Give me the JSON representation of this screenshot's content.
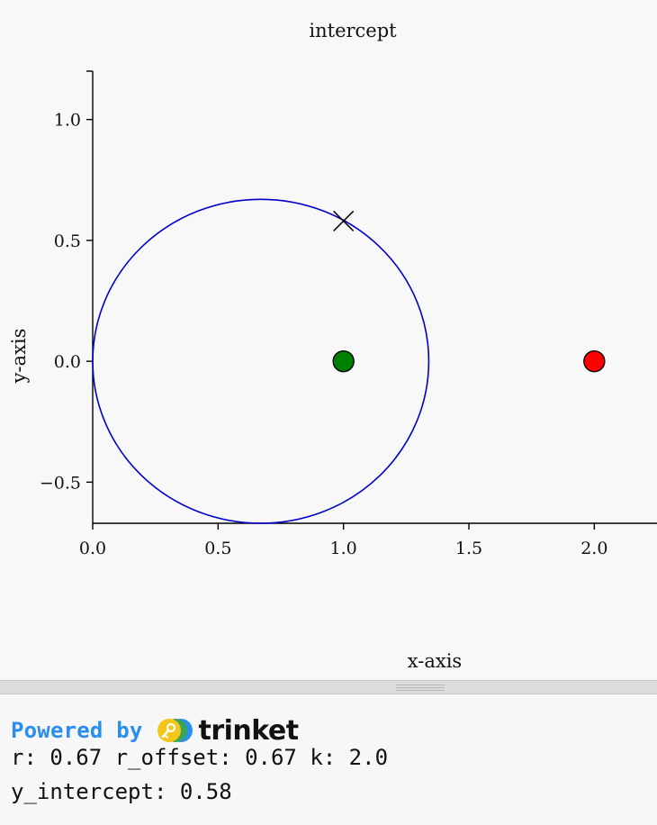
{
  "chart_data": {
    "type": "scatter",
    "title": "intercept",
    "xlabel": "x-axis",
    "ylabel": "y-axis",
    "xlim": [
      0.0,
      2.25
    ],
    "ylim": [
      -0.67,
      1.2
    ],
    "x_ticks": [
      0.0,
      0.5,
      1.0,
      1.5,
      2.0
    ],
    "x_tick_labels": [
      "0.0",
      "0.5",
      "1.0",
      "1.5",
      "2.0"
    ],
    "y_ticks": [
      -0.5,
      0.0,
      0.5,
      1.0
    ],
    "y_tick_labels": [
      "−0.5",
      "0.0",
      "0.5",
      "1.0"
    ],
    "grid": false,
    "circle": {
      "center": [
        0.67,
        0.0
      ],
      "radius": 0.67,
      "color": "#0000cc"
    },
    "points": [
      {
        "x": 1.0,
        "y": 0.0,
        "color": "#008000",
        "marker": "circle"
      },
      {
        "x": 2.0,
        "y": 0.0,
        "color": "#ff0000",
        "marker": "circle"
      },
      {
        "x": 1.0,
        "y": 0.58,
        "color": "#000000",
        "marker": "x"
      }
    ]
  },
  "console": {
    "powered_by": "Powered by",
    "brand": "trinket",
    "line1": "r: 0.67 r_offset: 0.67 k: 2.0",
    "line2": "y_intercept: 0.58"
  },
  "colors": {
    "powered_by": "#2a8df0",
    "logo_yellow": "#f5c518",
    "logo_green": "#3aa655",
    "logo_blue": "#2a8df0"
  },
  "icons": {
    "logo": "trinket-logo-icon",
    "grip": "resize-grip-icon"
  }
}
